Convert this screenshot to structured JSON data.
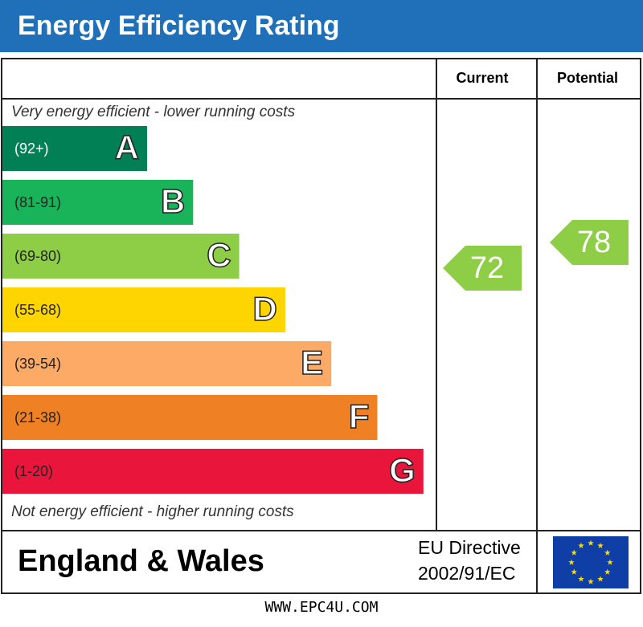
{
  "header": {
    "title": "Energy Efficiency Rating"
  },
  "table": {
    "columns": [
      "Current",
      "Potential"
    ],
    "top_note": "Very energy efficient - lower running costs",
    "bottom_note": "Not energy efficient - higher running costs",
    "bands": [
      {
        "range": "(92+)",
        "letter": "A",
        "color": "#008054"
      },
      {
        "range": "(81-91)",
        "letter": "B",
        "color": "#19b459"
      },
      {
        "range": "(69-80)",
        "letter": "C",
        "color": "#8dce46"
      },
      {
        "range": "(55-68)",
        "letter": "D",
        "color": "#ffd500"
      },
      {
        "range": "(39-54)",
        "letter": "E",
        "color": "#fcaa65"
      },
      {
        "range": "(21-38)",
        "letter": "F",
        "color": "#ef8023"
      },
      {
        "range": "(1-20)",
        "letter": "G",
        "color": "#e9153b"
      }
    ],
    "ratings": {
      "current": 72,
      "potential": 78
    }
  },
  "footer": {
    "region": "England & Wales",
    "directive": [
      "EU Directive",
      "2002/91/EC"
    ]
  },
  "website": "WWW.EPC4U.COM"
}
